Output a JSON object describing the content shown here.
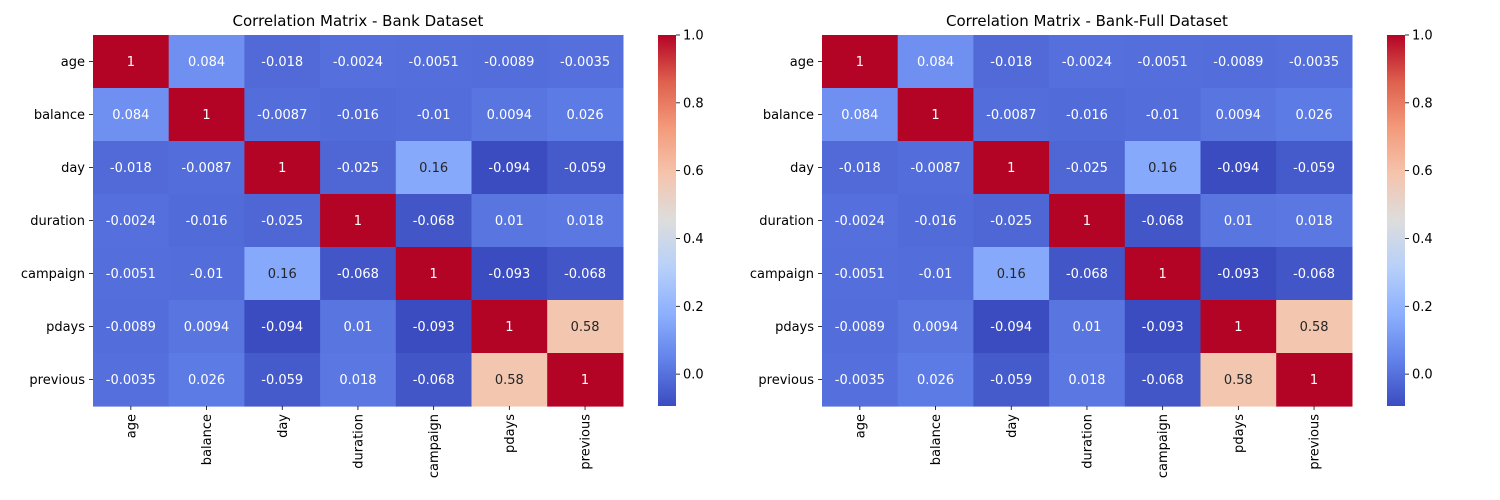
{
  "chart_data": [
    {
      "type": "heatmap",
      "title": "Correlation Matrix - Bank Dataset",
      "x_categories": [
        "age",
        "balance",
        "day",
        "duration",
        "campaign",
        "pdays",
        "previous"
      ],
      "y_categories": [
        "age",
        "balance",
        "day",
        "duration",
        "campaign",
        "pdays",
        "previous"
      ],
      "values": [
        [
          1,
          0.084,
          -0.018,
          -0.0024,
          -0.0051,
          -0.0089,
          -0.0035
        ],
        [
          0.084,
          1,
          -0.0087,
          -0.016,
          -0.01,
          0.0094,
          0.026
        ],
        [
          -0.018,
          -0.0087,
          1,
          -0.025,
          0.16,
          -0.094,
          -0.059
        ],
        [
          -0.0024,
          -0.016,
          -0.025,
          1,
          -0.068,
          0.01,
          0.018
        ],
        [
          -0.0051,
          -0.01,
          0.16,
          -0.068,
          1,
          -0.093,
          -0.068
        ],
        [
          -0.0089,
          0.0094,
          -0.094,
          0.01,
          -0.093,
          1,
          0.58
        ],
        [
          -0.0035,
          0.026,
          -0.059,
          0.018,
          -0.068,
          0.58,
          1
        ]
      ],
      "colormap": "coolwarm",
      "vmin": -0.094,
      "vmax": 1,
      "colorbar_ticks": [
        "1.0",
        "0.8",
        "0.6",
        "0.4",
        "0.2",
        "0.0"
      ],
      "colorbar_tick_values": [
        1.0,
        0.8,
        0.6,
        0.4,
        0.2,
        0.0
      ]
    },
    {
      "type": "heatmap",
      "title": "Correlation Matrix - Bank-Full Dataset",
      "x_categories": [
        "age",
        "balance",
        "day",
        "duration",
        "campaign",
        "pdays",
        "previous"
      ],
      "y_categories": [
        "age",
        "balance",
        "day",
        "duration",
        "campaign",
        "pdays",
        "previous"
      ],
      "values": [
        [
          1,
          0.084,
          -0.018,
          -0.0024,
          -0.0051,
          -0.0089,
          -0.0035
        ],
        [
          0.084,
          1,
          -0.0087,
          -0.016,
          -0.01,
          0.0094,
          0.026
        ],
        [
          -0.018,
          -0.0087,
          1,
          -0.025,
          0.16,
          -0.094,
          -0.059
        ],
        [
          -0.0024,
          -0.016,
          -0.025,
          1,
          -0.068,
          0.01,
          0.018
        ],
        [
          -0.0051,
          -0.01,
          0.16,
          -0.068,
          1,
          -0.093,
          -0.068
        ],
        [
          -0.0089,
          0.0094,
          -0.094,
          0.01,
          -0.093,
          1,
          0.58
        ],
        [
          -0.0035,
          0.026,
          -0.059,
          0.018,
          -0.068,
          0.58,
          1
        ]
      ],
      "colormap": "coolwarm",
      "vmin": -0.094,
      "vmax": 1,
      "colorbar_ticks": [
        "1.0",
        "0.8",
        "0.6",
        "0.4",
        "0.2",
        "0.0"
      ],
      "colorbar_tick_values": [
        1.0,
        0.8,
        0.6,
        0.4,
        0.2,
        0.0
      ]
    }
  ]
}
